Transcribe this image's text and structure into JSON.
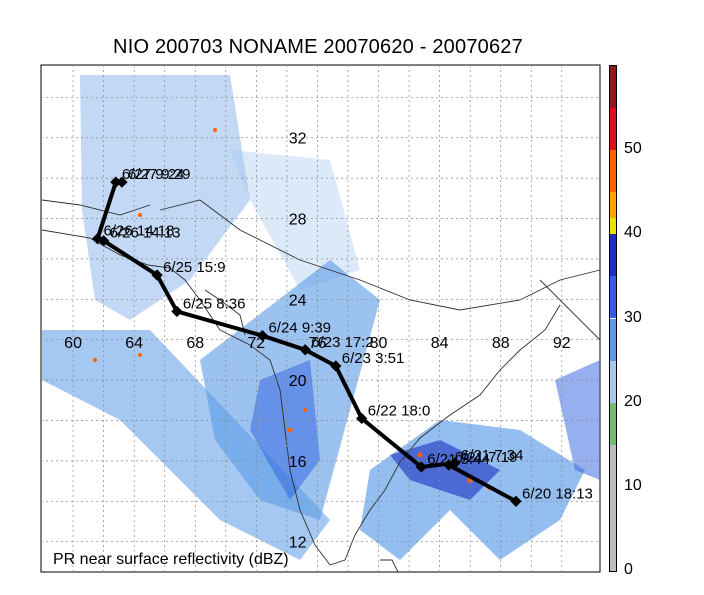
{
  "title": "NIO 200703 NONAME 20070620 - 20070627",
  "footer_label": "PR near surface reflectivity (dBZ)",
  "lon_labels": [
    "60",
    "64",
    "68",
    "72",
    "76",
    "80",
    "84",
    "88",
    "92"
  ],
  "lat_labels": [
    "32",
    "28",
    "24",
    "20",
    "16",
    "12"
  ],
  "track": [
    {
      "label": "6/20 18:13",
      "lon": 89.0,
      "lat": 14.0
    },
    {
      "label": "6/21 7:19",
      "lon": 84.6,
      "lat": 15.8
    },
    {
      "label": "6/21 7:34",
      "lon": 85.0,
      "lat": 15.9
    },
    {
      "label": "6/21 5:44",
      "lon": 82.8,
      "lat": 15.7
    },
    {
      "label": "6/22 18:0",
      "lon": 78.9,
      "lat": 18.1
    },
    {
      "label": "6/23 3:51",
      "lon": 77.2,
      "lat": 20.7
    },
    {
      "label": "6/23 17:2",
      "lon": 75.2,
      "lat": 21.5
    },
    {
      "label": "6/24 9:39",
      "lon": 72.4,
      "lat": 22.2
    },
    {
      "label": "6/25 8:36",
      "lon": 66.8,
      "lat": 23.4
    },
    {
      "label": "6/25 15:9",
      "lon": 65.5,
      "lat": 25.2
    },
    {
      "label": "6/26 14:13",
      "lon": 62.0,
      "lat": 26.9
    },
    {
      "label": "6/26 14:18",
      "lon": 61.6,
      "lat": 27.0
    },
    {
      "label": "6/27 9:24",
      "lon": 62.8,
      "lat": 29.8
    },
    {
      "label": "6/27 9:29",
      "lon": 63.2,
      "lat": 29.8
    }
  ],
  "colorbar": {
    "ticks": [
      "0",
      "10",
      "20",
      "30",
      "40",
      "50"
    ],
    "segments": [
      {
        "from": 0,
        "to": 15,
        "color": "#bdbdbd"
      },
      {
        "from": 15,
        "to": 20,
        "color": "#6fbf6f"
      },
      {
        "from": 20,
        "to": 25,
        "color": "#a8c8f0"
      },
      {
        "from": 25,
        "to": 30,
        "color": "#5a9be6"
      },
      {
        "from": 30,
        "to": 35,
        "color": "#2d5fe0"
      },
      {
        "from": 35,
        "to": 40,
        "color": "#1a2fc0"
      },
      {
        "from": 40,
        "to": 42,
        "color": "#f0e000"
      },
      {
        "from": 42,
        "to": 45,
        "color": "#ffa500"
      },
      {
        "from": 45,
        "to": 50,
        "color": "#ff6000"
      },
      {
        "from": 50,
        "to": 55,
        "color": "#e01010"
      },
      {
        "from": 55,
        "to": 60,
        "color": "#8b1a1a"
      }
    ]
  },
  "colors": {
    "track": "#000000",
    "grid": "#888888",
    "land": "#2f2f2f"
  }
}
